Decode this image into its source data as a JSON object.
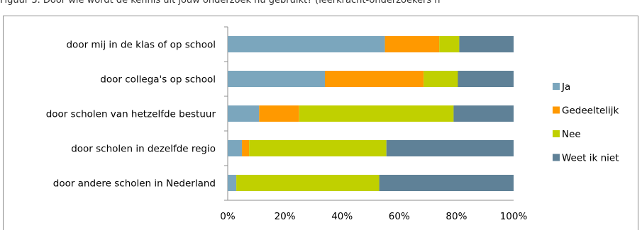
{
  "caption": "Figuur 3. Door wie wordt de kennis uit jouw onderzoek nu gebruikt? (leerkracht-onderzoekers n",
  "chart_data": {
    "type": "bar",
    "orientation": "horizontal",
    "stacked": "percent",
    "title": "",
    "xlabel": "",
    "ylabel": "",
    "xlim": [
      0,
      100
    ],
    "ticks": [
      "0%",
      "20%",
      "40%",
      "60%",
      "80%",
      "100%"
    ],
    "categories": [
      "door mij in de klas of op school",
      "door collega's op school",
      "door scholen van hetzelfde bestuur",
      "door scholen in dezelfde regio",
      "door andere scholen in Nederland"
    ],
    "series": [
      {
        "name": "Ja",
        "color": "#7ba6bd",
        "values": [
          55,
          34,
          11,
          5,
          3
        ]
      },
      {
        "name": "Gedeeltelijk",
        "color": "#ff9900",
        "values": [
          19,
          34.5,
          14,
          2.5,
          0
        ]
      },
      {
        "name": "Nee",
        "color": "#c0d000",
        "values": [
          7,
          12,
          54,
          48,
          50
        ]
      },
      {
        "name": "Weet ik niet",
        "color": "#5f8197",
        "values": [
          19,
          19.5,
          21,
          44.5,
          47
        ]
      }
    ],
    "legend_position": "right",
    "grid": false
  }
}
